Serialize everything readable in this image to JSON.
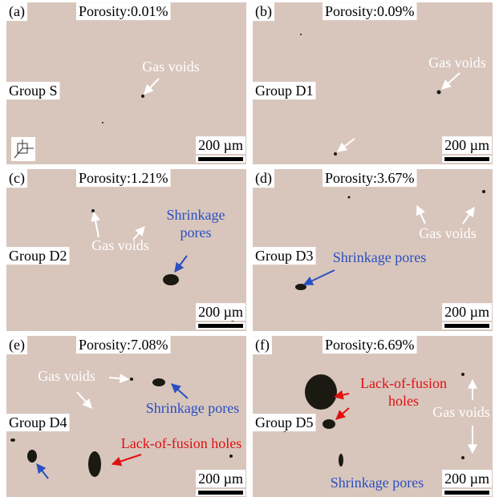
{
  "panels": [
    {
      "label": "(a)",
      "porosity": "Porosity:0.01%",
      "group": "Group S",
      "scale": "200 µm",
      "annotations": [
        {
          "lines": [
            "Gas voids"
          ],
          "color": "white"
        }
      ]
    },
    {
      "label": "(b)",
      "porosity": "Porosity:0.09%",
      "group": "Group D1",
      "scale": "200 µm",
      "annotations": [
        {
          "lines": [
            "Gas voids"
          ],
          "color": "white"
        }
      ]
    },
    {
      "label": "(c)",
      "porosity": "Porosity:1.21%",
      "group": "Group D2",
      "scale": "200 µm",
      "annotations": [
        {
          "lines": [
            "Gas voids"
          ],
          "color": "white"
        },
        {
          "lines": [
            "Shrinkage",
            "pores"
          ],
          "color": "blue"
        }
      ]
    },
    {
      "label": "(d)",
      "porosity": "Porosity:3.67%",
      "group": "Group D3",
      "scale": "200 µm",
      "annotations": [
        {
          "lines": [
            "Gas voids"
          ],
          "color": "white"
        },
        {
          "lines": [
            "Shrinkage pores"
          ],
          "color": "blue"
        }
      ]
    },
    {
      "label": "(e)",
      "porosity": "Porosity:7.08%",
      "group": "Group D4",
      "scale": "200 µm",
      "annotations": [
        {
          "lines": [
            "Gas voids"
          ],
          "color": "white"
        },
        {
          "lines": [
            "Shrinkage pores"
          ],
          "color": "blue"
        },
        {
          "lines": [
            "Lack-of-fusion holes"
          ],
          "color": "red"
        }
      ]
    },
    {
      "label": "(f)",
      "porosity": "Porosity:6.69%",
      "group": "Group D5",
      "scale": "200 µm",
      "annotations": [
        {
          "lines": [
            "Lack-of-fusion",
            "holes"
          ],
          "color": "red"
        },
        {
          "lines": [
            "Gas voids"
          ],
          "color": "white"
        },
        {
          "lines": [
            "Shrinkage pores"
          ],
          "color": "blue"
        }
      ]
    }
  ]
}
